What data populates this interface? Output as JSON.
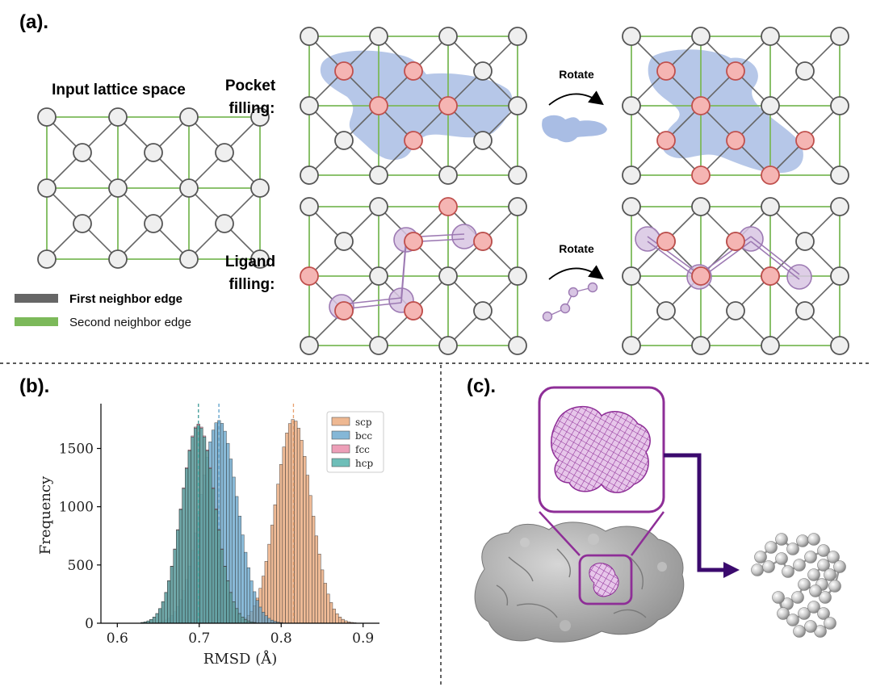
{
  "panel_a": {
    "label": "(a).",
    "input_title": "Input lattice space",
    "pocket_label_1": "Pocket",
    "pocket_label_2": "filling:",
    "ligand_label_1": "Ligand",
    "ligand_label_2": "filling:",
    "rotate_1": "Rotate",
    "rotate_2": "Rotate",
    "legend_first": "First neighbor edge",
    "legend_second": "Second neighbor edge",
    "colors": {
      "first_edge": "#666666",
      "second_edge": "#7cb95a",
      "pocket": "#a9bde4",
      "selected_node": "#f5b5b3",
      "ligand": "#d8c5e3"
    }
  },
  "panel_b": {
    "label": "(b).",
    "chart_data": {
      "type": "bar",
      "xlabel": "RMSD (Å)",
      "ylabel": "Frequency",
      "xlim": [
        0.58,
        0.92
      ],
      "ylim": [
        0,
        1850
      ],
      "xticks": [
        "0.6",
        "0.7",
        "0.8",
        "0.9"
      ],
      "yticks": [
        "0",
        "500",
        "1000",
        "1500"
      ],
      "legend_placement": "top-right",
      "series": [
        {
          "name": "scp",
          "color": "#e8a06e",
          "mean": 0.815,
          "sd": 0.0215,
          "peak": 1750
        },
        {
          "name": "bcc",
          "color": "#5b9fc9",
          "mean": 0.724,
          "sd": 0.0225,
          "peak": 1740
        },
        {
          "name": "fcc",
          "color": "#e77fa0",
          "mean": 0.699,
          "sd": 0.0205,
          "peak": 1710
        },
        {
          "name": "hcp",
          "color": "#3ea8a0",
          "mean": 0.699,
          "sd": 0.0205,
          "peak": 1700
        }
      ]
    }
  },
  "panel_c": {
    "label": "(c).",
    "colors": {
      "frame": "#8e2e97",
      "arrow": "#3b0a6e",
      "surface": "#a8a8a8"
    }
  }
}
